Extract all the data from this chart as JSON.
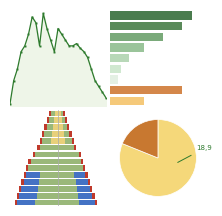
{
  "line_y": [
    2,
    4,
    5,
    6.5,
    7,
    8,
    9.5,
    9,
    7,
    9.8,
    8.5,
    7.5,
    6.5,
    8.5,
    8,
    7.5,
    7,
    7,
    7.2,
    6.8,
    6.5,
    6,
    5,
    4,
    3.5,
    3,
    2.5
  ],
  "line_color": "#2d7a2d",
  "line_fill": "#eef5e8",
  "bar_values": [
    8.5,
    7.5,
    5.5,
    3.5,
    2.0,
    1.2,
    0.8,
    7.5,
    3.5
  ],
  "bar_colors": [
    "#4a7c4e",
    "#5a8a5a",
    "#7aaa7a",
    "#9ac49a",
    "#b8d8b8",
    "#d0e8d0",
    "#e4f0e4",
    "#d4874a",
    "#f5c97a"
  ],
  "pie_values": [
    81.1,
    18.9
  ],
  "pie_colors": [
    "#f5d87a",
    "#c87830"
  ],
  "pie_label": "18,9",
  "pie_label_color": "#2d7a2d",
  "pyramid_ages": 14,
  "pyramid_male": [
    9.0,
    8.5,
    8.0,
    7.5,
    7.0,
    6.5,
    6.0,
    5.0,
    4.0,
    3.5,
    3.0,
    2.5,
    2.0,
    1.5
  ],
  "pyramid_female": [
    8.5,
    8.0,
    7.5,
    7.0,
    6.5,
    6.0,
    5.5,
    5.0,
    4.0,
    3.5,
    3.0,
    2.5,
    2.0,
    1.5
  ],
  "pyramid_blue": "#4472c4",
  "pyramid_green": "#9ab87a",
  "pyramid_yellow": "#e8d07a",
  "pyramid_red": "#c0392b",
  "bg_color": "#ffffff"
}
